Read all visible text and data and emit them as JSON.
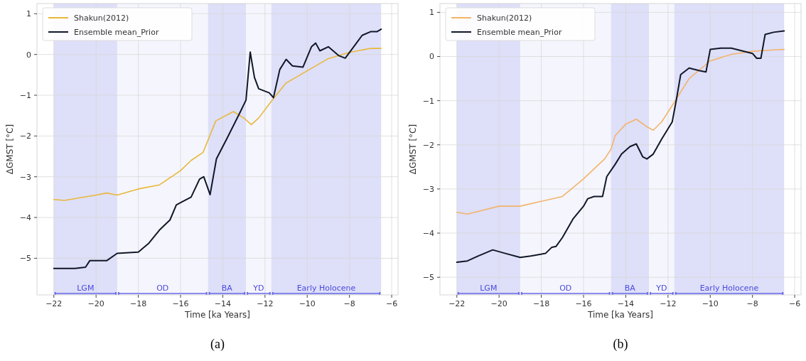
{
  "chart_data": [
    {
      "type": "line",
      "xlabel": "Time [ka Years]",
      "ylabel": "ΔGMST [°C]",
      "xlim": [
        -22.8,
        -5.7
      ],
      "ylim": [
        -5.9,
        1.25
      ],
      "xticks": [
        -22,
        -20,
        -18,
        -16,
        -14,
        -12,
        -10,
        -8,
        -6
      ],
      "yticks": [
        -5,
        -4,
        -3,
        -2,
        -1,
        0,
        1
      ],
      "grid": true,
      "legend": "top left",
      "series": [
        {
          "name": "Shakun(2012)",
          "color": "#e8b83a",
          "x": [
            -22,
            -21.5,
            -20,
            -19.5,
            -19,
            -18,
            -17,
            -16,
            -15.5,
            -14.93,
            -14.33,
            -13.5,
            -13,
            -12.65,
            -12.3,
            -11.57,
            -11,
            -10,
            -9,
            -8,
            -7,
            -6.5
          ],
          "values": [
            -3.56,
            -3.58,
            -3.45,
            -3.4,
            -3.45,
            -3.3,
            -3.2,
            -2.85,
            -2.6,
            -2.4,
            -1.63,
            -1.4,
            -1.56,
            -1.72,
            -1.56,
            -1.06,
            -0.7,
            -0.4,
            -0.1,
            0.05,
            0.15,
            0.15
          ]
        },
        {
          "name": "Ensemble mean_Prior",
          "color": "#101828",
          "x": [
            -22,
            -21,
            -20.5,
            -20.3,
            -19.5,
            -19,
            -18,
            -17.5,
            -17,
            -16.5,
            -16.2,
            -15.5,
            -15.1,
            -14.9,
            -14.6,
            -14.3,
            -13.8,
            -13.2,
            -12.9,
            -12.7,
            -12.5,
            -12.3,
            -11.8,
            -11.6,
            -11.3,
            -11,
            -10.7,
            -10.2,
            -9.8,
            -9.6,
            -9.4,
            -9,
            -8.5,
            -8.2,
            -7.8,
            -7.4,
            -7,
            -6.7,
            -6.5
          ],
          "values": [
            -5.25,
            -5.25,
            -5.22,
            -5.06,
            -5.06,
            -4.88,
            -4.85,
            -4.63,
            -4.31,
            -4.06,
            -3.69,
            -3.5,
            -3.06,
            -3,
            -3.44,
            -2.56,
            -2.06,
            -1.44,
            -1.12,
            0.06,
            -0.56,
            -0.84,
            -0.94,
            -1.06,
            -0.37,
            -0.12,
            -0.28,
            -0.31,
            0.19,
            0.28,
            0.09,
            0.19,
            -0.03,
            -0.09,
            0.19,
            0.47,
            0.56,
            0.56,
            0.62
          ]
        }
      ],
      "bands": [
        {
          "axis": "x",
          "from": -22,
          "to": -19,
          "label": "LGM",
          "color": "#dedff8"
        },
        {
          "axis": "x",
          "from": -19,
          "to": -14.7,
          "label": "OD",
          "color": "#f5f5fd"
        },
        {
          "axis": "x",
          "from": -14.7,
          "to": -12.9,
          "label": "BA",
          "color": "#dedff8"
        },
        {
          "axis": "x",
          "from": -12.9,
          "to": -11.7,
          "label": "YD",
          "color": "#f5f5fd"
        },
        {
          "axis": "x",
          "from": -11.7,
          "to": -6.5,
          "label": "Early Holocene",
          "color": "#dedff8"
        }
      ],
      "annotations": [
        "(a)"
      ]
    },
    {
      "type": "line",
      "xlabel": "Time [ka Years]",
      "ylabel": "ΔGMST [°C]",
      "xlim": [
        -22.8,
        -5.7
      ],
      "ylim": [
        -5.4,
        1.2
      ],
      "xticks": [
        -22,
        -20,
        -18,
        -16,
        -14,
        -12,
        -10,
        -8,
        -6
      ],
      "yticks": [
        -5,
        -4,
        -3,
        -2,
        -1,
        0,
        1
      ],
      "grid": true,
      "legend": "top left",
      "series": [
        {
          "name": "Shakun(2012)",
          "color": "#f2b46a",
          "x": [
            -22,
            -21.5,
            -20,
            -19,
            -18,
            -17,
            -16,
            -15,
            -14.7,
            -14.5,
            -14,
            -13.5,
            -13,
            -12.7,
            -12.3,
            -11.8,
            -11,
            -10,
            -9,
            -8,
            -7,
            -6.5
          ],
          "values": [
            -3.53,
            -3.57,
            -3.39,
            -3.39,
            -3.28,
            -3.17,
            -2.77,
            -2.32,
            -2.1,
            -1.79,
            -1.53,
            -1.42,
            -1.59,
            -1.67,
            -1.48,
            -1.11,
            -0.5,
            -0.1,
            0.05,
            0.12,
            0.15,
            0.16
          ]
        },
        {
          "name": "Ensemble mean_Prior",
          "color": "#101828",
          "x": [
            -22,
            -21.5,
            -21,
            -20.3,
            -19.7,
            -19,
            -18.5,
            -17.8,
            -17.5,
            -17.3,
            -17,
            -16.5,
            -16,
            -15.8,
            -15.5,
            -15.1,
            -14.9,
            -14.5,
            -14.2,
            -13.8,
            -13.5,
            -13.2,
            -13,
            -12.7,
            -12.3,
            -11.8,
            -11.6,
            -11.4,
            -11,
            -10.5,
            -10.2,
            -10,
            -9.5,
            -9,
            -8.5,
            -8,
            -7.8,
            -7.6,
            -7.4,
            -7,
            -6.5
          ],
          "values": [
            -4.66,
            -4.63,
            -4.52,
            -4.38,
            -4.46,
            -4.55,
            -4.52,
            -4.46,
            -4.32,
            -4.3,
            -4.1,
            -3.68,
            -3.39,
            -3.22,
            -3.17,
            -3.17,
            -2.72,
            -2.44,
            -2.21,
            -2.04,
            -1.98,
            -2.27,
            -2.32,
            -2.21,
            -1.87,
            -1.48,
            -0.97,
            -0.41,
            -0.26,
            -0.32,
            -0.35,
            0.16,
            0.19,
            0.19,
            0.13,
            0.07,
            -0.04,
            -0.04,
            0.5,
            0.55,
            0.58
          ]
        }
      ],
      "bands": [
        {
          "axis": "x",
          "from": -22,
          "to": -19,
          "label": "LGM",
          "color": "#dedff8"
        },
        {
          "axis": "x",
          "from": -19,
          "to": -14.7,
          "label": "OD",
          "color": "#f5f5fd"
        },
        {
          "axis": "x",
          "from": -14.7,
          "to": -12.9,
          "label": "BA",
          "color": "#dedff8"
        },
        {
          "axis": "x",
          "from": -12.9,
          "to": -11.7,
          "label": "YD",
          "color": "#f5f5fd"
        },
        {
          "axis": "x",
          "from": -11.7,
          "to": -6.5,
          "label": "Early Holocene",
          "color": "#dedff8"
        }
      ],
      "annotations": [
        "(b)"
      ]
    }
  ]
}
